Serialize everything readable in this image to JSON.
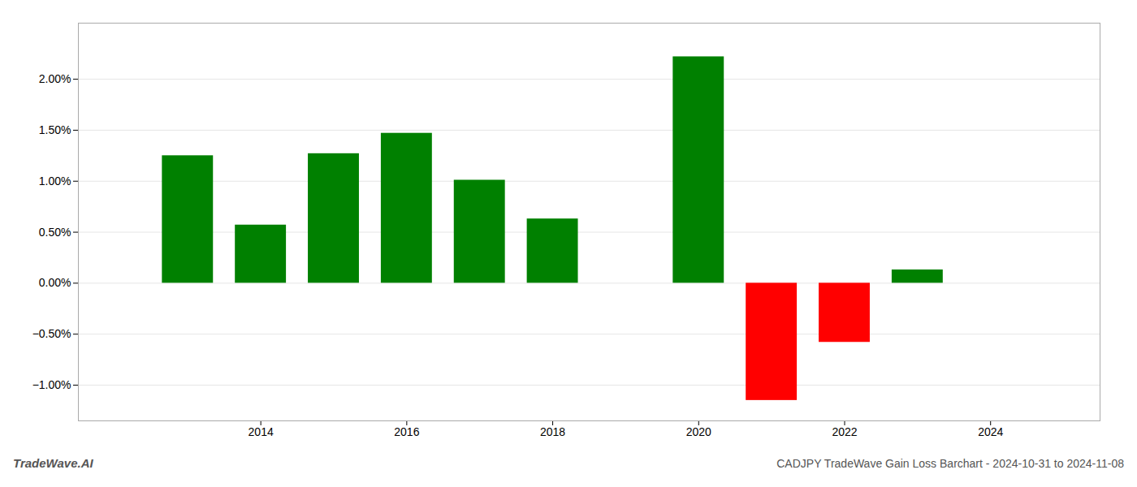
{
  "chart_data": {
    "type": "bar",
    "title": "CADJPY TradeWave Gain Loss Barchart - 2024-10-31 to 2024-11-08",
    "annotations": [
      "TradeWave.AI"
    ],
    "x": [
      2013,
      2014,
      2015,
      2016,
      2017,
      2018,
      2020,
      2021,
      2022,
      2023
    ],
    "values": [
      1.25,
      0.57,
      1.27,
      1.47,
      1.01,
      0.63,
      2.22,
      -1.15,
      -0.58,
      0.13
    ],
    "colors": [
      "#008000",
      "#008000",
      "#008000",
      "#008000",
      "#008000",
      "#008000",
      "#008000",
      "#ff0000",
      "#ff0000",
      "#008000"
    ],
    "xlim": [
      2011.5,
      2025.5
    ],
    "xticks": [
      2014,
      2016,
      2018,
      2020,
      2022,
      2024
    ],
    "ylim": [
      -1.35,
      2.55
    ],
    "yticks": [
      {
        "value": -1.0,
        "label": "−1.00%"
      },
      {
        "value": -0.5,
        "label": "−0.50%"
      },
      {
        "value": 0.0,
        "label": "0.00%"
      },
      {
        "value": 0.5,
        "label": "0.50%"
      },
      {
        "value": 1.0,
        "label": "1.00%"
      },
      {
        "value": 1.5,
        "label": "1.50%"
      },
      {
        "value": 2.0,
        "label": "2.00%"
      }
    ],
    "grid": true
  }
}
